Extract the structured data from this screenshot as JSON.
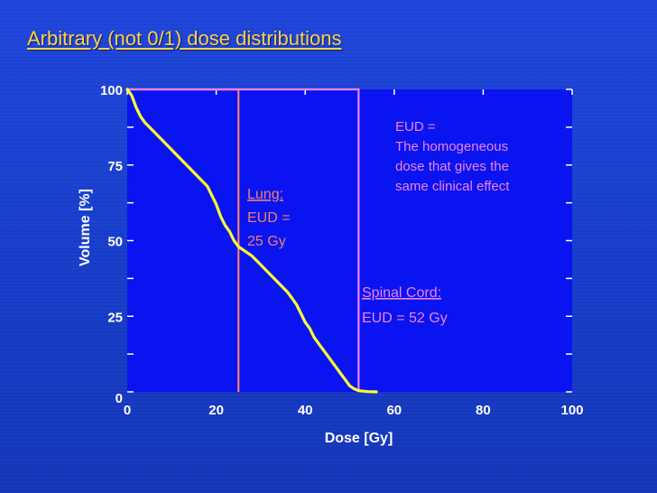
{
  "slide": {
    "title": "Arbitrary (not 0/1) dose distributions"
  },
  "colors": {
    "background": "#1b3fd0",
    "title": "#ffd24a",
    "plot_background": "#0a14f0",
    "axis_text": "#ffffff",
    "dvh_curve": "#ffff33",
    "lung_line": "#f08070",
    "cord_line": "#ee82ee"
  },
  "chart_data": {
    "type": "line",
    "xlabel": "Dose [Gy]",
    "ylabel": "Volume [%]",
    "xlim": [
      0,
      100
    ],
    "ylim": [
      0,
      100
    ],
    "x_ticks": [
      "0",
      "20",
      "40",
      "60",
      "80",
      "100"
    ],
    "y_ticks": [
      "0",
      "25",
      "50",
      "75",
      "100"
    ],
    "grid": false,
    "series": [
      {
        "x": [
          0,
          1,
          2,
          3,
          4,
          6,
          8,
          10,
          12,
          14,
          16,
          18,
          19,
          20,
          21,
          22,
          23,
          24,
          25,
          26,
          28,
          30,
          32,
          34,
          36,
          37,
          38,
          39,
          40,
          41,
          42,
          43,
          44,
          45,
          46,
          47,
          48,
          49,
          50,
          51,
          52,
          54,
          56
        ],
        "y": [
          100,
          98,
          94,
          91,
          89,
          86,
          83,
          80,
          77,
          74,
          71,
          68,
          65,
          62,
          58,
          55,
          53,
          50,
          48,
          47,
          45,
          42,
          39,
          36,
          33,
          31,
          29,
          26,
          23,
          21,
          18,
          16,
          14,
          12,
          10,
          8,
          6,
          4,
          2,
          1,
          0.4,
          0.1,
          0
        ]
      }
    ],
    "annotations": {
      "lung": {
        "label": "Lung:",
        "line1": "EUD =",
        "line2": "25 Gy",
        "x": 25,
        "y_top": 100
      },
      "cord": {
        "label": "Spinal Cord:",
        "line1": "EUD = 52 Gy",
        "x": 52,
        "y_top": 100
      },
      "definition": [
        "EUD =",
        "The homogeneous",
        "dose that gives the",
        "same clinical effect"
      ]
    }
  }
}
